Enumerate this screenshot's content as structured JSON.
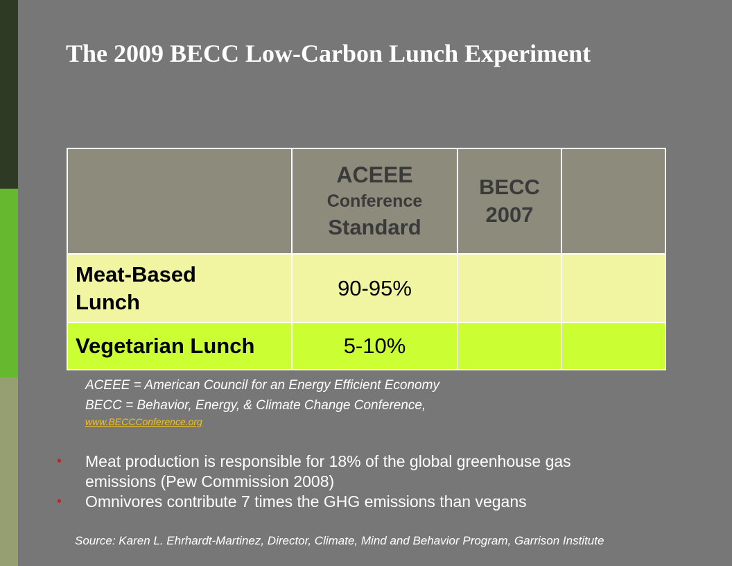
{
  "slide": {
    "title": "The 2009 BECC Low-Carbon Lunch Experiment"
  },
  "table": {
    "header": {
      "col2": {
        "line1": "ACEEE",
        "line2": "Conference",
        "line3": "Standard"
      },
      "col3": {
        "line1": "BECC",
        "line2": "2007"
      },
      "col4": ""
    },
    "rows": [
      {
        "label_line1": "Meat-Based",
        "label_line2": "Lunch",
        "col2": "90-95%",
        "col3": "",
        "col4": ""
      },
      {
        "label": "Vegetarian Lunch",
        "col2": "5-10%",
        "col3": "",
        "col4": ""
      }
    ]
  },
  "notes": {
    "aceee": "ACEEE = American Council for an Energy Efficient Economy",
    "becc": "BECC = Behavior, Energy, & Climate Change Conference,",
    "link": "www.BECCConference.org"
  },
  "bullets": [
    {
      "marker": "•",
      "text_line1": "Meat production is responsible for 18% of the global greenhouse gas",
      "text_line2": "emissions (Pew Commission 2008)"
    },
    {
      "marker": "•",
      "text_line1": "Omnivores contribute 7 times the GHG emissions than vegans"
    }
  ],
  "source": "Source: Karen L. Ehrhardt-Martinez, Director, Climate, Mind and Behavior Program, Garrison Institute",
  "colors": {
    "background": "#777777",
    "header_cell": "#8c8b7c",
    "meat_row": "#f1f5a2",
    "veg_row": "#ccff33",
    "bullet_marker": "#cc2020",
    "link": "#f0c020"
  }
}
